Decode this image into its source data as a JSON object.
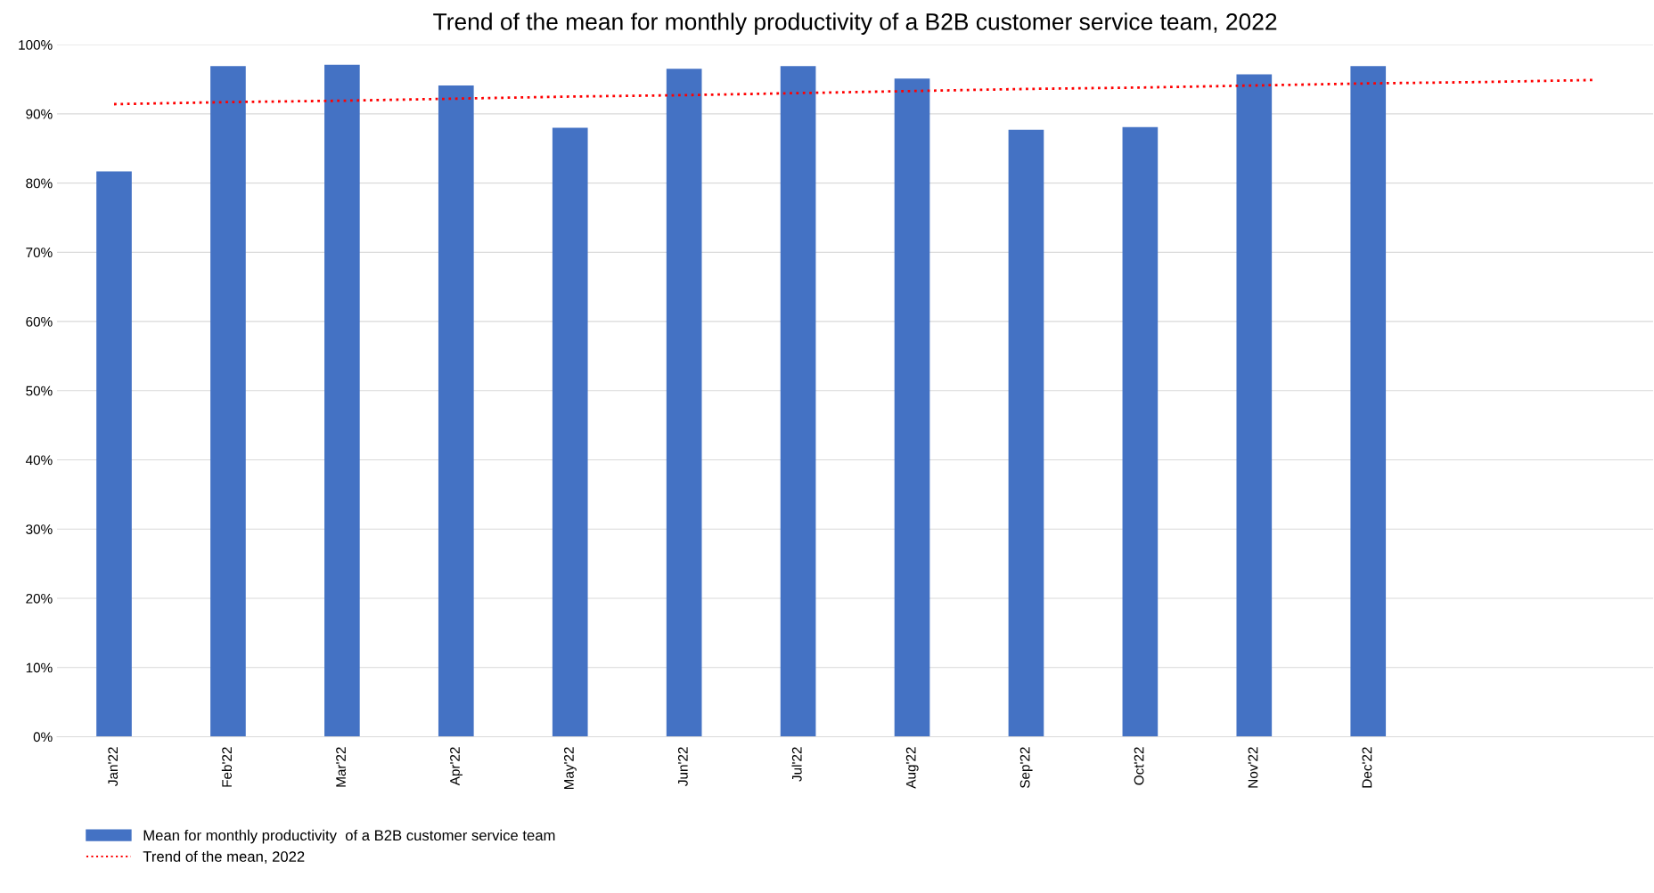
{
  "chart_data": {
    "type": "bar",
    "title": "Trend of the mean for monthly productivity of a B2B customer service team, 2022",
    "categories": [
      "Jan'22",
      "Feb'22",
      "Mar'22",
      "Apr'22",
      "May'22",
      "Jun'22",
      "Jul'22",
      "Aug'22",
      "Sep'22",
      "Oct'22",
      "Nov'22",
      "Dec'22",
      null,
      null
    ],
    "series": [
      {
        "name": "Mean for monthly productivity  of a B2B customer service team",
        "color": "#4472c4",
        "values": [
          81.7,
          96.9,
          97.1,
          94.1,
          88.0,
          96.5,
          96.9,
          95.1,
          87.7,
          88.1,
          95.7,
          96.9,
          null,
          null
        ]
      },
      {
        "name": "Trend of the mean, 2022",
        "type": "line",
        "line_style": "dotted",
        "color": "#ff0000",
        "values": [
          91.4,
          91.7,
          91.9,
          92.2,
          92.5,
          92.7,
          93.0,
          93.3,
          93.6,
          93.8,
          94.1,
          94.4,
          94.6,
          94.9
        ]
      }
    ],
    "ylim": [
      0,
      100
    ],
    "yticks": [
      {
        "value": 0,
        "label": "0%"
      },
      {
        "value": 10,
        "label": "10%"
      },
      {
        "value": 20,
        "label": "20%"
      },
      {
        "value": 30,
        "label": "30%"
      },
      {
        "value": 40,
        "label": "40%"
      },
      {
        "value": 50,
        "label": "50%"
      },
      {
        "value": 60,
        "label": "60%"
      },
      {
        "value": 70,
        "label": "70%"
      },
      {
        "value": 80,
        "label": "80%"
      },
      {
        "value": 90,
        "label": "90%"
      },
      {
        "value": 100,
        "label": "100%"
      }
    ],
    "grid": "y",
    "legend": "bottom left"
  }
}
